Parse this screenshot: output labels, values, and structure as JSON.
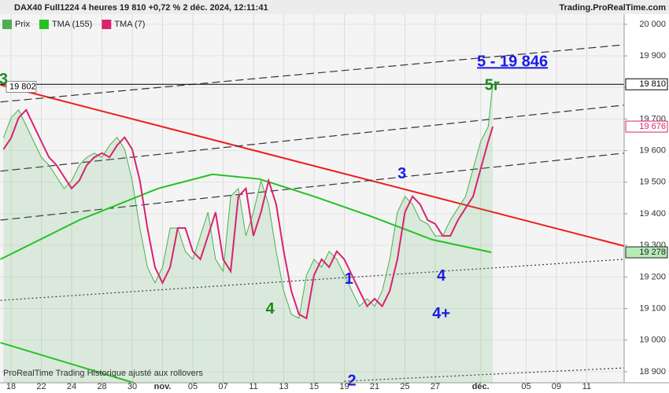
{
  "chart_data": {
    "type": "line",
    "title": "DAX40 Full1224 4 heures 19 810 +0,72 % 2 déc. 2024, 12:11:41",
    "source": "Trading.ProRealTime.com",
    "footnote": "ProRealTime Trading  Historique ajusté aux rollovers",
    "xlim": [
      -0.73,
      40.47
    ],
    "xticks": [
      {
        "value": 0,
        "label": "18"
      },
      {
        "value": 2,
        "label": "22"
      },
      {
        "value": 4,
        "label": "24"
      },
      {
        "value": 6,
        "label": "28"
      },
      {
        "value": 8,
        "label": "30"
      },
      {
        "value": 10,
        "label": "nov."
      },
      {
        "value": 12,
        "label": "05"
      },
      {
        "value": 14,
        "label": "07"
      },
      {
        "value": 16,
        "label": "11"
      },
      {
        "value": 18,
        "label": "13"
      },
      {
        "value": 20,
        "label": "15"
      },
      {
        "value": 22,
        "label": "19"
      },
      {
        "value": 24,
        "label": "21"
      },
      {
        "value": 26,
        "label": "25"
      },
      {
        "value": 28,
        "label": "27"
      },
      {
        "value": 31,
        "label": "déc."
      },
      {
        "value": 34,
        "label": "05"
      },
      {
        "value": 36,
        "label": "09"
      },
      {
        "value": 38,
        "label": "11"
      }
    ],
    "ylim": [
      18865,
      20032
    ],
    "yticks": [
      {
        "value": 20000,
        "label": "20 000"
      },
      {
        "value": 19900,
        "label": "19 900"
      },
      {
        "value": 19800,
        "label": "19 800"
      },
      {
        "value": 19700,
        "label": "19 700"
      },
      {
        "value": 19600,
        "label": "19 600"
      },
      {
        "value": 19500,
        "label": "19 500"
      },
      {
        "value": 19400,
        "label": "19 400"
      },
      {
        "value": 19300,
        "label": "19 300"
      },
      {
        "value": 19200,
        "label": "19 200"
      },
      {
        "value": 19100,
        "label": "19 100"
      },
      {
        "value": 19000,
        "label": "19 000"
      },
      {
        "value": 18900,
        "label": "18 900"
      }
    ],
    "grid": true,
    "x": [
      -0.5,
      0,
      0.5,
      1,
      1.5,
      2,
      2.5,
      3,
      3.5,
      4,
      4.5,
      5,
      5.5,
      6,
      6.5,
      7,
      7.5,
      8,
      8.5,
      9,
      9.5,
      10,
      10.5,
      11,
      11.5,
      12,
      12.5,
      13,
      13.5,
      14,
      14.5,
      15,
      15.5,
      16,
      16.5,
      17,
      17.5,
      18,
      18.5,
      19,
      19.5,
      20,
      20.5,
      21,
      21.5,
      22,
      22.5,
      23,
      23.5,
      24,
      24.5,
      25,
      25.5,
      26,
      26.5,
      27,
      27.5,
      28,
      28.5,
      29,
      29.5,
      30,
      30.5,
      31,
      31.5,
      31.8
    ],
    "series": [
      {
        "name": "Prix",
        "color": "#4caf50",
        "values": [
          19640,
          19704,
          19729,
          19679,
          19629,
          19579,
          19554,
          19517,
          19480,
          19505,
          19554,
          19579,
          19592,
          19579,
          19617,
          19642,
          19604,
          19505,
          19355,
          19231,
          19181,
          19231,
          19355,
          19355,
          19281,
          19256,
          19330,
          19405,
          19256,
          19218,
          19455,
          19480,
          19330,
          19405,
          19505,
          19430,
          19281,
          19156,
          19082,
          19069,
          19206,
          19256,
          19231,
          19281,
          19256,
          19206,
          19156,
          19107,
          19131,
          19107,
          19156,
          19256,
          19405,
          19455,
          19430,
          19380,
          19368,
          19330,
          19330,
          19380,
          19418,
          19455,
          19542,
          19629,
          19676,
          19810
        ]
      },
      {
        "name": "TMA (155)",
        "color": "#22c322",
        "x": [
          -0.7,
          4.5,
          9.7,
          13.3,
          16.4,
          20,
          23.7,
          27.8,
          31.7
        ],
        "values": [
          19256,
          19380,
          19480,
          19525,
          19510,
          19455,
          19393,
          19318,
          19278
        ]
      },
      {
        "name": "TMA (7)",
        "color": "#d6246e",
        "values": [
          19604,
          19640,
          19704,
          19729,
          19679,
          19629,
          19579,
          19554,
          19517,
          19480,
          19505,
          19554,
          19579,
          19592,
          19579,
          19617,
          19642,
          19604,
          19505,
          19355,
          19231,
          19181,
          19231,
          19355,
          19355,
          19281,
          19256,
          19330,
          19405,
          19256,
          19218,
          19455,
          19480,
          19330,
          19405,
          19505,
          19430,
          19281,
          19156,
          19082,
          19069,
          19206,
          19256,
          19231,
          19281,
          19256,
          19206,
          19156,
          19107,
          19131,
          19107,
          19156,
          19256,
          19405,
          19455,
          19430,
          19380,
          19368,
          19330,
          19330,
          19380,
          19418,
          19455,
          19542,
          19629,
          19676
        ]
      }
    ],
    "lines": [
      {
        "color": "#ee1c1c",
        "style": "solid",
        "x": [
          -0.7,
          40.47
        ],
        "y": [
          19808,
          19298
        ]
      },
      {
        "color": "#333333",
        "style": "dashed",
        "x": [
          -0.7,
          40.47
        ],
        "y": [
          19754,
          19935
        ]
      },
      {
        "color": "#333333",
        "style": "dashed",
        "x": [
          -0.7,
          40.47
        ],
        "y": [
          19535,
          19744
        ]
      },
      {
        "color": "#333333",
        "style": "dashed",
        "x": [
          -0.7,
          40.47
        ],
        "y": [
          19380,
          19592
        ]
      },
      {
        "color": "#333333",
        "style": "dotted",
        "x": [
          -0.7,
          40.47
        ],
        "y": [
          19126,
          19256
        ]
      },
      {
        "color": "#333333",
        "style": "dotted",
        "x": [
          22,
          40.47
        ],
        "y": [
          18870,
          18912
        ]
      },
      {
        "color": "#22c322",
        "style": "solid",
        "x": [
          -0.7,
          8.1
        ],
        "y": [
          18992,
          18865
        ]
      }
    ],
    "level_label": {
      "value": 19802,
      "label": "19 802"
    },
    "price_labels": [
      {
        "value": 19810,
        "label": "19 810",
        "color": "#000000",
        "bg": "#ffffff"
      },
      {
        "value": 19676,
        "label": "19 676",
        "color": "#d6246e",
        "bg": "#ffffff"
      },
      {
        "value": 19278,
        "label": "19 278",
        "color": "#222222",
        "bg": "#b6eab6"
      }
    ],
    "annotations": [
      {
        "text": "3",
        "color": "#1a8a1a",
        "x": -0.5,
        "y": 19824
      },
      {
        "text": "5 - 19 846",
        "color": "#1a1ae6",
        "x": 33.1,
        "y": 19880
      },
      {
        "text": "5r",
        "color": "#1a8a1a",
        "x": 31.75,
        "y": 19805
      },
      {
        "text": "3",
        "color": "#1a1ae6",
        "x": 25.8,
        "y": 19525
      },
      {
        "text": "4",
        "color": "#1a8a1a",
        "x": 17.1,
        "y": 19097
      },
      {
        "text": "1",
        "color": "#1a1ae6",
        "x": 22.3,
        "y": 19192
      },
      {
        "text": "4",
        "color": "#1a1ae6",
        "x": 28.4,
        "y": 19202
      },
      {
        "text": "4+",
        "color": "#1a1ae6",
        "x": 28.4,
        "y": 19082
      },
      {
        "text": "2",
        "color": "#1a1ae6",
        "x": 22.5,
        "y": 18870
      }
    ]
  }
}
